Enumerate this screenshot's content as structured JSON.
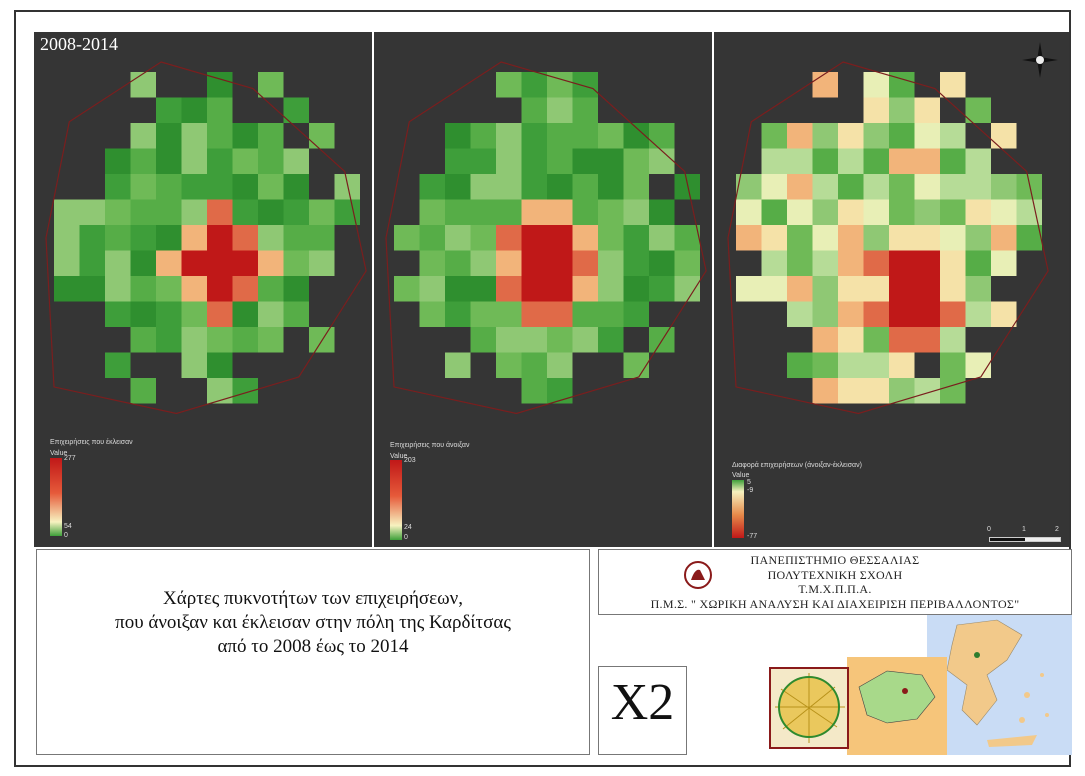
{
  "period": "2008-2014",
  "maps": [
    {
      "legend_title": "Επιχειρήσεις που έκλεισαν",
      "legend_value": "Value",
      "max": "277",
      "mid": "54",
      "min": "0"
    },
    {
      "legend_title": "Επιχειρήσεις που άνοιξαν",
      "legend_value": "Value",
      "max": "203",
      "mid": "24",
      "min": "0"
    },
    {
      "legend_title": "Διαφορά επιχειρήσεων (άνοιξαν-έκλεισαν)",
      "legend_value": "Value",
      "max": "5",
      "mid": "-9",
      "min": "-77"
    }
  ],
  "scale": [
    "0",
    "1",
    "2"
  ],
  "title_lines": [
    "Χάρτες πυκνοτήτων των επιχειρήσεων,",
    "που άνοιξαν και έκλεισαν στην πόλη της Καρδίτσας",
    "από το 2008 έως το 2014"
  ],
  "institution": [
    "ΠΑΝΕΠΙΣΤΗΜΙΟ ΘΕΣΣΑΛΙΑΣ",
    "ΠΟΛΥΤΕΧΝΙΚΗ ΣΧΟΛΗ",
    "Τ.Μ.Χ.Π.Π.Α.",
    "Π.Μ.Σ. \" ΧΩΡΙΚΗ ΑΝΑΛΥΣΗ ΚΑΙ ΔΙΑΧΕΙΡΙΣΗ ΠΕΡΙΒΑΛΛΟΝΤΟΣ\""
  ],
  "map_code": "X2",
  "icons": [
    "north-arrow-icon",
    "university-logo-icon"
  ],
  "colors": {
    "panel": "#353535",
    "green": "#3e9e3a",
    "light": "#f5f0b8",
    "red": "#c01818",
    "boundary": "#7a1e1e"
  }
}
